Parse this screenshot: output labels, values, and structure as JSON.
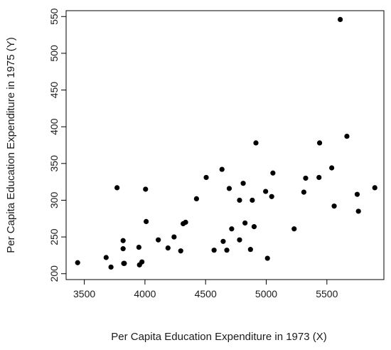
{
  "chart_data": {
    "type": "scatter",
    "title": "",
    "xlabel": "Per Capita Education Expenditure in 1973 (X)",
    "ylabel": "Per Capita Education Expenditure in 1975 (Y)",
    "xlim": [
      3350,
      5970
    ],
    "ylim": [
      192,
      558
    ],
    "x_ticks": [
      3500,
      4000,
      4500,
      5000,
      5500
    ],
    "y_ticks": [
      200,
      250,
      300,
      350,
      400,
      450,
      500,
      550
    ],
    "grid": false,
    "legend": "none",
    "point_color": "#000000",
    "series": [
      {
        "x": [
          3445,
          3680,
          3720,
          3770,
          3820,
          3820,
          3825,
          3830,
          3950,
          3955,
          3975,
          4005,
          4010,
          4110,
          4190,
          4240,
          4295,
          4315,
          4335,
          4425,
          4505,
          4570,
          4635,
          4645,
          4675,
          4695,
          4715,
          4780,
          4780,
          4810,
          4825,
          4870,
          4885,
          4900,
          4915,
          4995,
          5010,
          5045,
          5055,
          5230,
          5310,
          5325,
          5435,
          5440,
          5540,
          5560,
          5610,
          5665,
          5750,
          5760,
          5895
        ],
        "y": [
          215,
          222,
          209,
          317,
          245,
          234,
          214,
          214,
          236,
          212,
          216,
          315,
          271,
          246,
          235,
          250,
          231,
          268,
          270,
          302,
          331,
          232,
          342,
          244,
          232,
          316,
          261,
          246,
          300,
          323,
          269,
          233,
          300,
          264,
          378,
          312,
          221,
          305,
          337,
          261,
          311,
          330,
          331,
          378,
          344,
          292,
          546,
          387,
          308,
          285,
          317
        ]
      }
    ]
  }
}
